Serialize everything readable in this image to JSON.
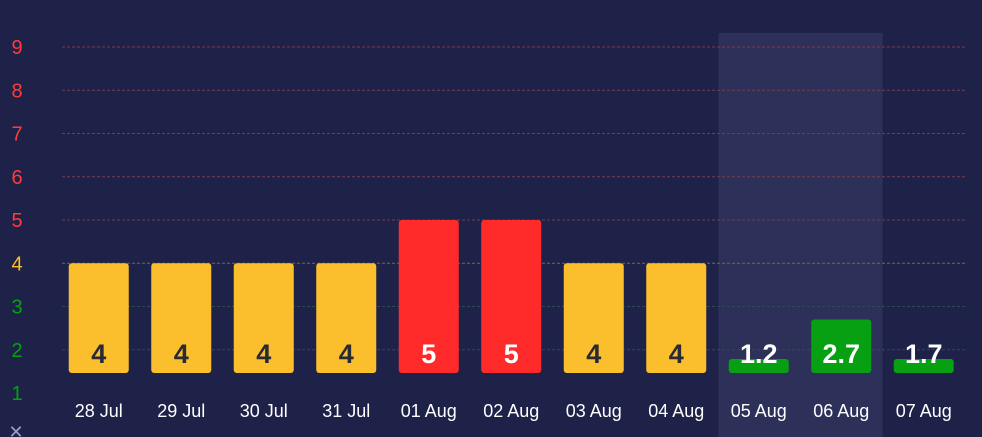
{
  "chart_data": {
    "type": "bar",
    "categories": [
      "28 Jul",
      "29 Jul",
      "30 Jul",
      "31 Jul",
      "01 Aug",
      "02 Aug",
      "03 Aug",
      "04 Aug",
      "05 Aug",
      "06 Aug",
      "07 Aug"
    ],
    "values": [
      4,
      4,
      4,
      4,
      5,
      5,
      4,
      4,
      1.2,
      2.7,
      1.7
    ],
    "labels": [
      "4",
      "4",
      "4",
      "4",
      "5",
      "5",
      "4",
      "4",
      "1.2",
      "2.7",
      "1.7"
    ],
    "bar_colors": [
      "#fbbf2e",
      "#fbbf2e",
      "#fbbf2e",
      "#fbbf2e",
      "#ff2a2a",
      "#ff2a2a",
      "#fbbf2e",
      "#fbbf2e",
      "#07a012",
      "#07a012",
      "#07a012"
    ],
    "label_colors": [
      "#2a2a33",
      "#2a2a33",
      "#2a2a33",
      "#2a2a33",
      "#ffffff",
      "#ffffff",
      "#2a2a33",
      "#2a2a33",
      "#ffffff",
      "#ffffff",
      "#ffffff"
    ],
    "highlighted_category": "05 Aug",
    "highlighted_range": [
      "05 Aug",
      "06 Aug"
    ],
    "yticks": [
      "1",
      "2",
      "3",
      "4",
      "5",
      "6",
      "7",
      "8",
      "9"
    ],
    "ytick_colors": [
      "#07a012",
      "#07a012",
      "#07a012",
      "#fbbf2e",
      "#ff3b3b",
      "#ff3b3b",
      "#ff3b3b",
      "#ff3b3b",
      "#ff3b3b"
    ],
    "ylim": [
      1,
      9
    ],
    "grid": true,
    "corner_glyph": "✕",
    "title": "",
    "xlabel": "",
    "ylabel": ""
  },
  "colors": {
    "background": "#1e2148",
    "highlight_band": "#2d3159",
    "grid_red": "#7a3a4a",
    "grid_yellow": "#7a6a3a",
    "grid_green": "#2e4a4a"
  }
}
